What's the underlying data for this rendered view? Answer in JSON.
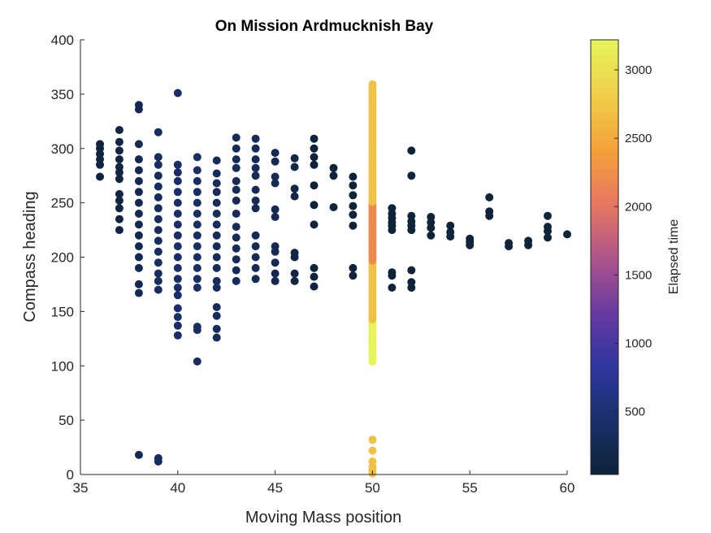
{
  "chart_data": {
    "type": "scatter",
    "title": "On Mission Ardmucknish Bay",
    "xlabel": "Moving Mass position",
    "ylabel": "Compass heading",
    "xlim": [
      35,
      60
    ],
    "ylim": [
      0,
      400
    ],
    "xticks": [
      "35",
      "40",
      "45",
      "50",
      "55",
      "60"
    ],
    "yticks": [
      "0",
      "50",
      "100",
      "150",
      "200",
      "250",
      "300",
      "350",
      "400"
    ],
    "grid": false,
    "colorbar": {
      "label": "Elapsed time",
      "range": [
        40,
        3220
      ],
      "ticks": [
        "500",
        "1000",
        "1500",
        "2000",
        "2500",
        "3000"
      ],
      "colormap": [
        "#0d2337",
        "#1a2f6a",
        "#2e36a0",
        "#6a3aa0",
        "#b0558a",
        "#e8785e",
        "#f4a23a",
        "#f0cf4a",
        "#e6f55a"
      ]
    },
    "points_summary": "Each column lists Compass heading values at a Moving Mass position; c is the Elapsed time color value.",
    "columns": [
      {
        "x": 36,
        "c": 120,
        "y": [
          274,
          285,
          290,
          295,
          300,
          304
        ]
      },
      {
        "x": 37,
        "c": 140,
        "y": [
          225,
          235,
          245,
          252,
          258,
          272,
          278,
          283,
          290,
          298,
          306,
          317
        ]
      },
      {
        "x": 38,
        "c": 250,
        "y": [
          18,
          167,
          175,
          190,
          200,
          210,
          220,
          230,
          240,
          250,
          260,
          270,
          280,
          290,
          304,
          336,
          340
        ]
      },
      {
        "x": 39,
        "c": 360,
        "y": [
          12,
          15,
          170,
          178,
          185,
          195,
          205,
          215,
          225,
          235,
          245,
          255,
          265,
          275,
          285,
          292,
          315
        ]
      },
      {
        "x": 40,
        "c": 420,
        "y": [
          128,
          137,
          145,
          153,
          165,
          172,
          180,
          190,
          200,
          210,
          220,
          230,
          240,
          250,
          260,
          270,
          278,
          285,
          351
        ]
      },
      {
        "x": 41,
        "c": 400,
        "y": [
          104,
          133,
          136,
          172,
          180,
          190,
          200,
          210,
          220,
          230,
          240,
          250,
          260,
          270,
          280,
          292
        ]
      },
      {
        "x": 42,
        "c": 330,
        "y": [
          126,
          134,
          146,
          154,
          172,
          178,
          190,
          200,
          210,
          220,
          230,
          240,
          250,
          260,
          268,
          277,
          289
        ]
      },
      {
        "x": 43,
        "c": 300,
        "y": [
          178,
          188,
          198,
          208,
          218,
          228,
          240,
          252,
          262,
          270,
          282,
          290,
          300,
          310
        ]
      },
      {
        "x": 44,
        "c": 280,
        "y": [
          180,
          190,
          200,
          210,
          220,
          245,
          252,
          262,
          275,
          282,
          290,
          300,
          309
        ]
      },
      {
        "x": 45,
        "c": 260,
        "y": [
          178,
          185,
          195,
          205,
          210,
          237,
          244,
          268,
          274,
          288,
          296
        ]
      },
      {
        "x": 46,
        "c": 160,
        "y": [
          178,
          185,
          200,
          204,
          256,
          263,
          283,
          291
        ]
      },
      {
        "x": 47,
        "c": 80,
        "y": [
          173,
          182,
          190,
          230,
          248,
          266,
          285,
          292,
          300,
          309
        ]
      },
      {
        "x": 48,
        "c": 60,
        "y": [
          246,
          275,
          282
        ]
      },
      {
        "x": 49,
        "c": 60,
        "y": [
          183,
          190,
          229,
          239,
          247,
          257,
          266,
          274
        ]
      },
      {
        "x": 51,
        "c": 60,
        "y": [
          172,
          183,
          186,
          225,
          229,
          232,
          236,
          240,
          245
        ]
      },
      {
        "x": 52,
        "c": 60,
        "y": [
          172,
          177,
          188,
          225,
          229,
          233,
          238,
          275,
          298
        ]
      },
      {
        "x": 53,
        "c": 60,
        "y": [
          220,
          227,
          232,
          237
        ]
      },
      {
        "x": 54,
        "c": 60,
        "y": [
          219,
          223,
          229
        ]
      },
      {
        "x": 55,
        "c": 60,
        "y": [
          211,
          214,
          217
        ]
      },
      {
        "x": 56,
        "c": 60,
        "y": [
          238,
          242,
          255
        ]
      },
      {
        "x": 57,
        "c": 60,
        "y": [
          210,
          213
        ]
      },
      {
        "x": 58,
        "c": 60,
        "y": [
          211,
          215
        ]
      },
      {
        "x": 59,
        "c": 60,
        "y": [
          218,
          224,
          228,
          238
        ]
      },
      {
        "x": 60,
        "c": 60,
        "y": [
          221
        ]
      }
    ],
    "x50_segments": [
      {
        "x": 50,
        "c": 2700,
        "y": [
          1,
          4,
          7,
          12,
          22,
          32
        ]
      },
      {
        "x": 50,
        "c": 3200,
        "y_from": 104,
        "y_to": 142
      },
      {
        "x": 50,
        "c": 2700,
        "y_from": 143,
        "y_to": 196
      },
      {
        "x": 50,
        "c": 2200,
        "y_from": 197,
        "y_to": 250
      },
      {
        "x": 50,
        "c": 2700,
        "y_from": 251,
        "y_to": 359
      }
    ]
  }
}
